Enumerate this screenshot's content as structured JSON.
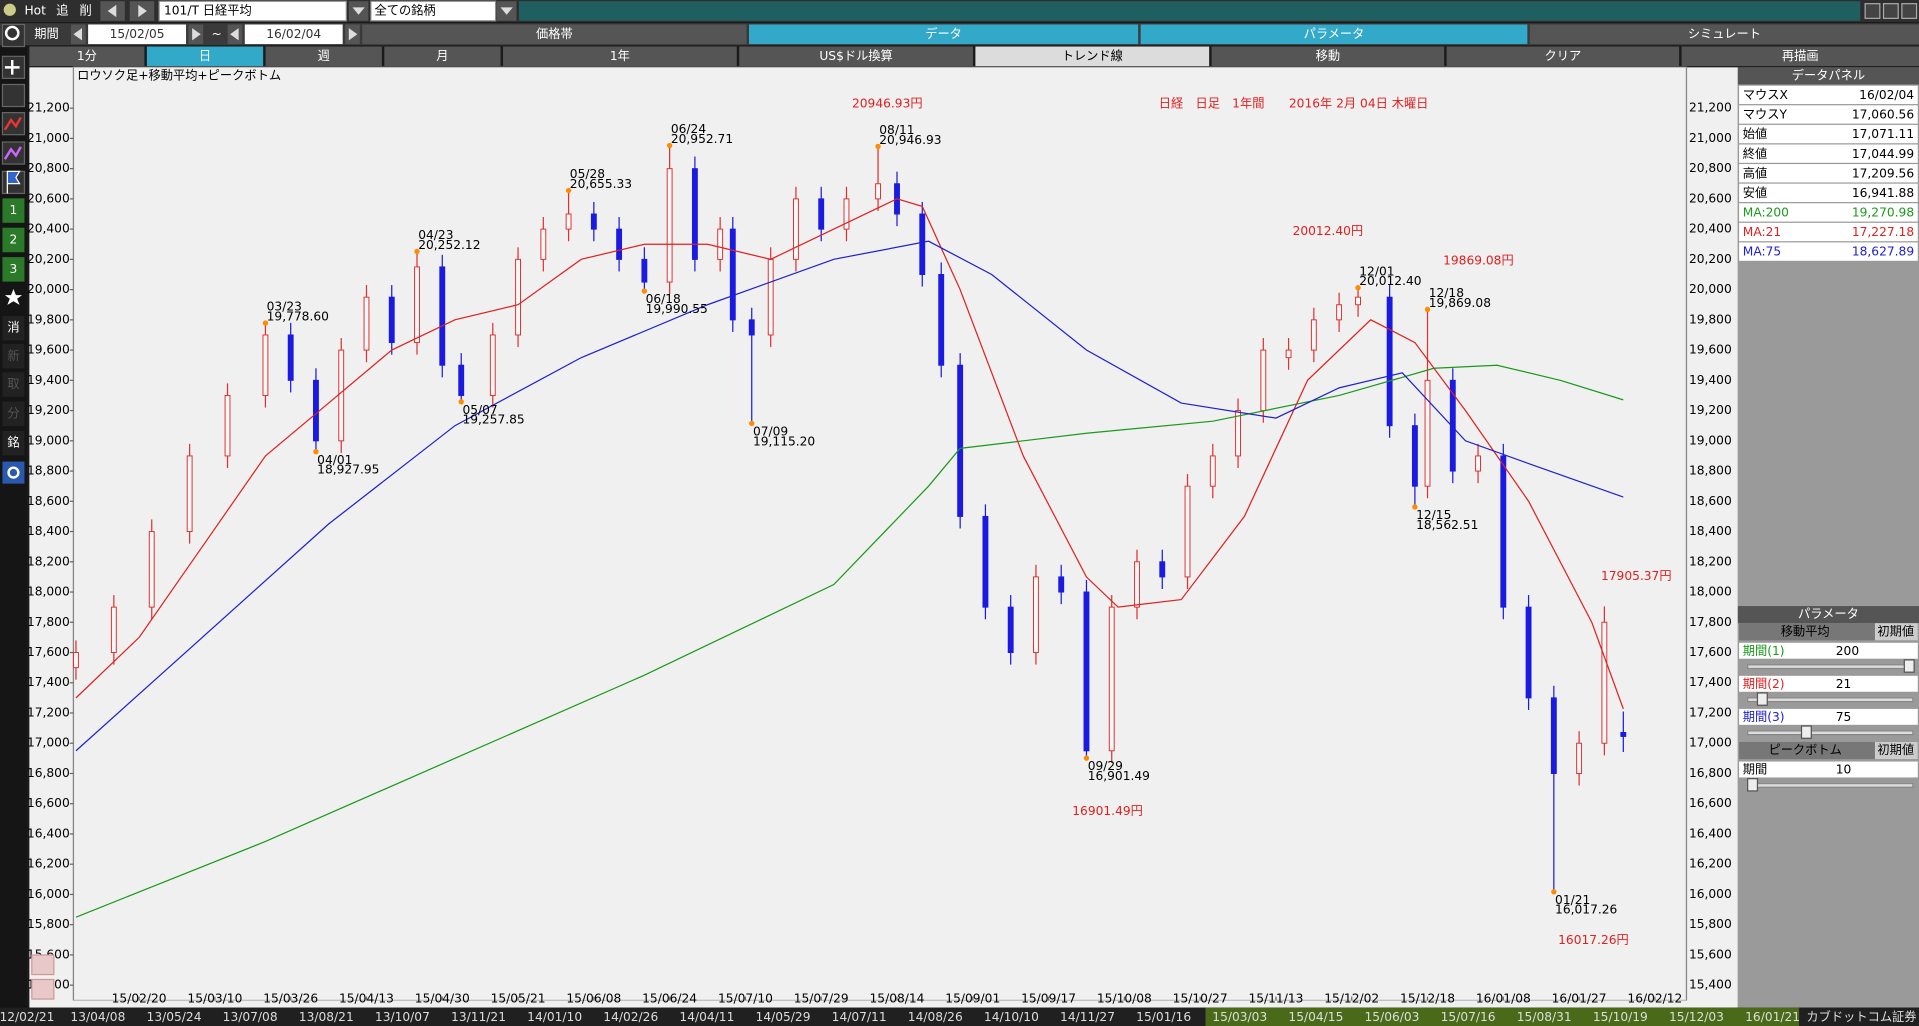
{
  "toolbar": {
    "hot": "Hot",
    "add": "追",
    "del": "削",
    "symbol": "101/T 日経平均",
    "filter": "全ての銘柄",
    "period_label": "期間",
    "from": "15/02/05",
    "tilde": "~",
    "to": "16/02/04"
  },
  "tabs1": [
    "価格帯",
    "データ",
    "パラメータ",
    "シミュレート"
  ],
  "tabs2": [
    "1分",
    "日",
    "週",
    "月",
    "1年",
    "US$ドル換算",
    "トレンド線",
    "移動",
    "クリア",
    "再描画"
  ],
  "left_icons": [
    "1",
    "2",
    "3",
    "消",
    "新",
    "取",
    "分",
    "銘"
  ],
  "data_panel": {
    "title": "データパネル",
    "rows": [
      [
        "マウスX",
        "16/02/04"
      ],
      [
        "マウスY",
        "17,060.56"
      ],
      [
        "始値",
        "17,071.11"
      ],
      [
        "終値",
        "17,044.99"
      ],
      [
        "高値",
        "17,209.56"
      ],
      [
        "安値",
        "16,941.88"
      ],
      [
        "MA:200",
        "19,270.98"
      ],
      [
        "MA:21",
        "17,227.18"
      ],
      [
        "MA:75",
        "18,627.89"
      ]
    ]
  },
  "param_panel": {
    "title": "パラメータ",
    "section1": "移動平均",
    "reset1": "初期値",
    "rows1": [
      [
        "期間(1)",
        "200"
      ],
      [
        "期間(2)",
        "21"
      ],
      [
        "期間(3)",
        "75"
      ]
    ],
    "section2": "ピークボトム",
    "reset2": "初期値",
    "rows2": [
      [
        "期間",
        "10"
      ]
    ]
  },
  "bottom_dates": [
    "12/02/21",
    "13/04/08",
    "13/05/24",
    "13/07/08",
    "13/08/21",
    "13/10/07",
    "13/11/21",
    "14/01/10",
    "14/02/26",
    "14/04/11",
    "14/05/29",
    "14/07/11",
    "14/08/26",
    "14/10/10",
    "14/11/27",
    "15/01/16",
    "15/03/03",
    "15/04/15",
    "15/06/03",
    "15/07/16",
    "15/08/31",
    "15/10/19",
    "15/12/03",
    "16/01/21"
  ],
  "broker": "カブドットコム証券",
  "chart_data": {
    "type": "candlestick",
    "subtitle": "ロウソク足+移動平均+ピークボトム",
    "title": "日経　日足　1年間　　2016年 2月 04日 木曜日",
    "up_color": "#e03030",
    "down_color": "#1a1ae0",
    "x": [
      0,
      6,
      12,
      18,
      24,
      30,
      34,
      38,
      42,
      46,
      50,
      54,
      58,
      61,
      66,
      70,
      74,
      78,
      82,
      86,
      90,
      94,
      98,
      102,
      104,
      107,
      110,
      114,
      118,
      122,
      127,
      130,
      134,
      137,
      140,
      144,
      148,
      152,
      156,
      160,
      164,
      168,
      172,
      176,
      180,
      184,
      188,
      192,
      196,
      200,
      203,
      208,
      212,
      214,
      218,
      222,
      226,
      230,
      234,
      238,
      242,
      245
    ],
    "open": [
      17500,
      17600,
      17900,
      18400,
      18900,
      19300,
      19700,
      19400,
      19000,
      19600,
      19950,
      19650,
      20150,
      19500,
      19300,
      19700,
      20200,
      20400,
      20500,
      20400,
      20200,
      20050,
      20800,
      20200,
      20400,
      19800,
      19700,
      20200,
      20600,
      20400,
      20600,
      20700,
      20500,
      20100,
      19500,
      18500,
      17900,
      17600,
      18100,
      18000,
      16950,
      17900,
      18200,
      18100,
      18700,
      18900,
      19200,
      19550,
      19600,
      19800,
      19900,
      19950,
      19100,
      18700,
      19400,
      18800,
      18900,
      17900,
      17300,
      16800,
      17000,
      17071.11
    ],
    "high": [
      17680,
      17980,
      18480,
      18980,
      19380,
      19778.6,
      19780,
      19480,
      19680,
      20030,
      20030,
      20252.12,
      20230,
      19580,
      19780,
      20280,
      20480,
      20655.33,
      20580,
      20480,
      20280,
      20952.71,
      20880,
      20480,
      20480,
      19880,
      20280,
      20680,
      20680,
      20680,
      20946.93,
      20780,
      20580,
      20180,
      19580,
      18580,
      17980,
      18180,
      18180,
      18080,
      17980,
      18280,
      18280,
      18780,
      18980,
      19280,
      19680,
      19680,
      19880,
      19980,
      20012.4,
      20030,
      19180,
      19869.08,
      19480,
      18980,
      18980,
      17980,
      17380,
      17080,
      17905.37,
      17209.56
    ],
    "low": [
      17420,
      17520,
      17820,
      18320,
      18820,
      19220,
      19320,
      18927.95,
      18920,
      19520,
      19570,
      19570,
      19420,
      19257.85,
      19220,
      19620,
      20120,
      20320,
      20320,
      20120,
      19990.55,
      19970,
      20120,
      20120,
      19720,
      19115.2,
      19620,
      20120,
      20320,
      20320,
      20520,
      20420,
      20020,
      19420,
      18420,
      17820,
      17520,
      17520,
      17920,
      16901.49,
      16870,
      17820,
      18020,
      18020,
      18620,
      18820,
      19120,
      19470,
      19520,
      19720,
      19820,
      19020,
      18562.51,
      18620,
      18720,
      18720,
      17820,
      17220,
      16017.26,
      16720,
      16920,
      16941.88
    ],
    "close": [
      17600,
      17900,
      18400,
      18900,
      19300,
      19700,
      19400,
      19000,
      19600,
      19950,
      19650,
      20150,
      19500,
      19300,
      19700,
      20200,
      20400,
      20500,
      20400,
      20200,
      20050,
      20800,
      20200,
      20400,
      19800,
      19700,
      20200,
      20600,
      20400,
      20600,
      20700,
      20500,
      20100,
      19500,
      18500,
      17900,
      17600,
      18100,
      18000,
      16950,
      17900,
      18200,
      18100,
      18700,
      18900,
      19200,
      19600,
      19600,
      19800,
      19900,
      19950,
      19100,
      18700,
      19400,
      18800,
      18900,
      17900,
      17300,
      16800,
      17000,
      17800,
      17044.99
    ],
    "series": [
      {
        "color": "#1a9a1a",
        "x": [
          0,
          30,
          60,
          90,
          120,
          135,
          140,
          160,
          180,
          200,
          215,
          225,
          235,
          245
        ],
        "values": [
          15850,
          16350,
          16900,
          17450,
          18050,
          18700,
          18950,
          19050,
          19130,
          19300,
          19480,
          19500,
          19400,
          19270.98
        ]
      },
      {
        "color": "#e02020",
        "x": [
          0,
          10,
          20,
          30,
          40,
          50,
          60,
          70,
          80,
          90,
          100,
          110,
          120,
          130,
          134,
          140,
          150,
          160,
          165,
          175,
          185,
          195,
          205,
          212,
          220,
          230,
          240,
          245
        ],
        "values": [
          17300,
          17700,
          18300,
          18900,
          19250,
          19600,
          19800,
          19900,
          20200,
          20300,
          20300,
          20200,
          20400,
          20600,
          20550,
          20000,
          18900,
          18100,
          17900,
          17950,
          18500,
          19400,
          19800,
          19650,
          19200,
          18600,
          17800,
          17227.18
        ]
      },
      {
        "color": "#2020d0",
        "x": [
          0,
          20,
          40,
          60,
          80,
          100,
          120,
          135,
          145,
          160,
          175,
          190,
          200,
          210,
          220,
          230,
          245
        ],
        "values": [
          16950,
          17700,
          18450,
          19100,
          19550,
          19900,
          20200,
          20320,
          20100,
          19600,
          19250,
          19150,
          19350,
          19450,
          19000,
          18850,
          18627.89
        ]
      }
    ],
    "peaks": [
      {
        "x": 30,
        "date": "03/23",
        "value": 19778.6,
        "label": "19,778.60",
        "pos": "top"
      },
      {
        "x": 38,
        "date": "04/01",
        "value": 18927.95,
        "label": "18,927.95",
        "pos": "bottom"
      },
      {
        "x": 54,
        "date": "04/23",
        "value": 20252.12,
        "label": "20,252.12",
        "pos": "top"
      },
      {
        "x": 61,
        "date": "05/07",
        "value": 19257.85,
        "label": "19,257.85",
        "pos": "bottom"
      },
      {
        "x": 78,
        "date": "05/28",
        "value": 20655.33,
        "label": "20,655.33",
        "pos": "top"
      },
      {
        "x": 90,
        "date": "06/18",
        "value": 19990.55,
        "label": "19,990.55",
        "pos": "bottom"
      },
      {
        "x": 94,
        "date": "06/24",
        "value": 20952.71,
        "label": "20,952.71",
        "pos": "top"
      },
      {
        "x": 107,
        "date": "07/09",
        "value": 19115.2,
        "label": "19,115.20",
        "pos": "bottom"
      },
      {
        "x": 127,
        "date": "08/11",
        "value": 20946.93,
        "label": "20,946.93",
        "pos": "top"
      },
      {
        "x": 160,
        "date": "09/29",
        "value": 16901.49,
        "label": "16,901.49",
        "pos": "bottom"
      },
      {
        "x": 203,
        "date": "12/01",
        "value": 20012.4,
        "label": "20,012.40",
        "pos": "top"
      },
      {
        "x": 212,
        "date": "12/15",
        "value": 18562.51,
        "label": "18,562.51",
        "pos": "bottom"
      },
      {
        "x": 214,
        "date": "12/18",
        "value": 19869.08,
        "label": "19,869.08",
        "pos": "top"
      },
      {
        "x": 234,
        "date": "01/21",
        "value": 16017.26,
        "label": "16,017.26",
        "pos": "bottom"
      }
    ],
    "annotations": [
      "20946.93円",
      "16901.49円",
      "20012.40円",
      "19869.08円",
      "17905.37円",
      "16017.26円"
    ],
    "xlim": [
      -0.4,
      255
    ],
    "xticks": [
      {
        "value": 10,
        "label": "15/02/20"
      },
      {
        "value": 22,
        "label": "15/03/10"
      },
      {
        "value": 34,
        "label": "15/03/26"
      },
      {
        "value": 46,
        "label": "15/04/13"
      },
      {
        "value": 58,
        "label": "15/04/30"
      },
      {
        "value": 70,
        "label": "15/05/21"
      },
      {
        "value": 82,
        "label": "15/06/08"
      },
      {
        "value": 94,
        "label": "15/06/24"
      },
      {
        "value": 106,
        "label": "15/07/10"
      },
      {
        "value": 118,
        "label": "15/07/29"
      },
      {
        "value": 130,
        "label": "15/08/14"
      },
      {
        "value": 142,
        "label": "15/09/01"
      },
      {
        "value": 154,
        "label": "15/09/17"
      },
      {
        "value": 166,
        "label": "15/10/08"
      },
      {
        "value": 178,
        "label": "15/10/27"
      },
      {
        "value": 190,
        "label": "15/11/13"
      },
      {
        "value": 202,
        "label": "15/12/02"
      },
      {
        "value": 214,
        "label": "15/12/18"
      },
      {
        "value": 226,
        "label": "16/01/08"
      },
      {
        "value": 238,
        "label": "16/01/27"
      },
      {
        "value": 250,
        "label": "16/02/12"
      }
    ],
    "ylim": [
      15300,
      21470
    ],
    "yticks": [
      {
        "value": 15400,
        "label": "15,400"
      },
      {
        "value": 15600,
        "label": "15,600"
      },
      {
        "value": 15800,
        "label": "15,800"
      },
      {
        "value": 16000,
        "label": "16,000"
      },
      {
        "value": 16200,
        "label": "16,200"
      },
      {
        "value": 16400,
        "label": "16,400"
      },
      {
        "value": 16600,
        "label": "16,600"
      },
      {
        "value": 16800,
        "label": "16,800"
      },
      {
        "value": 17000,
        "label": "17,000"
      },
      {
        "value": 17200,
        "label": "17,200"
      },
      {
        "value": 17400,
        "label": "17,400"
      },
      {
        "value": 17600,
        "label": "17,600"
      },
      {
        "value": 17800,
        "label": "17,800"
      },
      {
        "value": 18000,
        "label": "18,000"
      },
      {
        "value": 18200,
        "label": "18,200"
      },
      {
        "value": 18400,
        "label": "18,400"
      },
      {
        "value": 18600,
        "label": "18,600"
      },
      {
        "value": 18800,
        "label": "18,800"
      },
      {
        "value": 19000,
        "label": "19,000"
      },
      {
        "value": 19200,
        "label": "19,200"
      },
      {
        "value": 19400,
        "label": "19,400"
      },
      {
        "value": 19600,
        "label": "19,600"
      },
      {
        "value": 19800,
        "label": "19,800"
      },
      {
        "value": 20000,
        "label": "20,000"
      },
      {
        "value": 20200,
        "label": "20,200"
      },
      {
        "value": 20400,
        "label": "20,400"
      },
      {
        "value": 20600,
        "label": "20,600"
      },
      {
        "value": 20800,
        "label": "20,800"
      },
      {
        "value": 21000,
        "label": "21,000"
      },
      {
        "value": 21200,
        "label": "21,200"
      }
    ],
    "grid": false
  }
}
